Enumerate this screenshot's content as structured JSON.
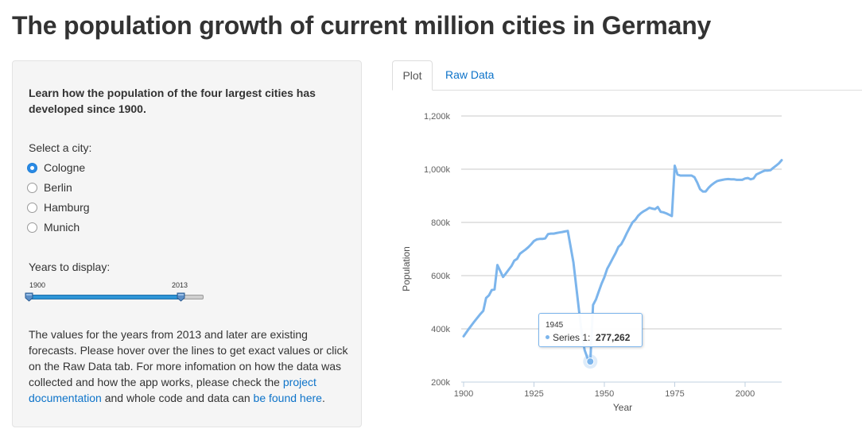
{
  "page_title": "The population growth of current million cities in Germany",
  "sidebar": {
    "intro": "Learn how the population of the four largest cities has developed since 1900.",
    "city_label": "Select a city:",
    "cities": [
      "Cologne",
      "Berlin",
      "Hamburg",
      "Munich"
    ],
    "selected_city": "Cologne",
    "years_label": "Years to display:",
    "slider": {
      "min_label": "1900",
      "max_label": "2013",
      "range_min": 1900,
      "range_max": 2030,
      "from": 1900,
      "to": 2013
    },
    "description_part1": "The values for the years from 2013 and later are existing forecasts. Please hover over the lines to get exact values or click on the Raw Data tab. For more infomation on how the data was collected and how the app works, please check the ",
    "description_link1": "project documentation",
    "description_part2": " and whole code and data can ",
    "description_link2": "be found here",
    "description_part3": "."
  },
  "tabs": [
    {
      "label": "Plot",
      "active": true
    },
    {
      "label": "Raw Data",
      "active": false
    }
  ],
  "colors": {
    "series": "#7cb5ec",
    "link": "#0d73c9",
    "accent": "#2a8ae5"
  },
  "tooltip": {
    "x": "1945",
    "series_label": "Series 1:",
    "value": "277,262"
  },
  "chart_data": {
    "type": "line",
    "title": "",
    "xlabel": "Year",
    "ylabel": "Population",
    "xlim": [
      1900,
      2013
    ],
    "ylim": [
      200000,
      1200000
    ],
    "x_ticks": [
      1900,
      1925,
      1950,
      1975,
      2000
    ],
    "y_ticks": [
      200000,
      400000,
      600000,
      800000,
      1000000,
      1200000
    ],
    "y_tick_labels": [
      "200k",
      "400k",
      "600k",
      "800k",
      "1,000k",
      "1,200k"
    ],
    "grid": true,
    "legend": "none",
    "highlight": {
      "x": 1945,
      "y": 277262
    },
    "series": [
      {
        "x": [
          1900,
          1901,
          1902,
          1903,
          1904,
          1905,
          1906,
          1907,
          1908,
          1909,
          1910,
          1911,
          1912,
          1913,
          1914,
          1915,
          1916,
          1917,
          1918,
          1919,
          1920,
          1921,
          1922,
          1923,
          1924,
          1925,
          1926,
          1927,
          1928,
          1929,
          1930,
          1931,
          1932,
          1933,
          1934,
          1935,
          1936,
          1937,
          1938,
          1939,
          1940,
          1941,
          1942,
          1943,
          1944,
          1945,
          1946,
          1947,
          1948,
          1949,
          1950,
          1951,
          1952,
          1953,
          1954,
          1955,
          1956,
          1957,
          1958,
          1959,
          1960,
          1961,
          1962,
          1963,
          1964,
          1965,
          1966,
          1967,
          1968,
          1969,
          1970,
          1971,
          1972,
          1973,
          1974,
          1975,
          1976,
          1977,
          1978,
          1979,
          1980,
          1981,
          1982,
          1983,
          1984,
          1985,
          1986,
          1987,
          1988,
          1989,
          1990,
          1991,
          1992,
          1993,
          1994,
          1995,
          1996,
          1997,
          1998,
          1999,
          2000,
          2001,
          2002,
          2003,
          2004,
          2005,
          2006,
          2007,
          2008,
          2009,
          2010,
          2011,
          2012,
          2013
        ],
        "y": [
          372000,
          387000,
          402000,
          416000,
          430000,
          443000,
          456000,
          468000,
          516000,
          526000,
          546000,
          548000,
          640000,
          618000,
          595000,
          608000,
          622000,
          636000,
          656000,
          663000,
          682000,
          690000,
          698000,
          707000,
          718000,
          730000,
          736000,
          738000,
          738000,
          740000,
          756000,
          758000,
          758000,
          760000,
          762000,
          764000,
          766000,
          768000,
          710000,
          650000,
          560000,
          470000,
          380000,
          320000,
          290000,
          277262,
          490000,
          510000,
          540000,
          570000,
          594000,
          625000,
          645000,
          665000,
          685000,
          708000,
          718000,
          738000,
          760000,
          780000,
          800000,
          810000,
          825000,
          835000,
          842000,
          848000,
          855000,
          852000,
          850000,
          858000,
          840000,
          838000,
          834000,
          829000,
          824000,
          1013000,
          980000,
          976000,
          976000,
          976000,
          976000,
          976000,
          970000,
          950000,
          925000,
          916000,
          916000,
          930000,
          940000,
          948000,
          955000,
          958000,
          960000,
          962000,
          963000,
          962000,
          962000,
          960000,
          960000,
          960000,
          965000,
          967000,
          962000,
          965000,
          980000,
          985000,
          990000,
          995000,
          995000,
          996000,
          1005000,
          1013000,
          1022000,
          1034000
        ]
      }
    ]
  }
}
